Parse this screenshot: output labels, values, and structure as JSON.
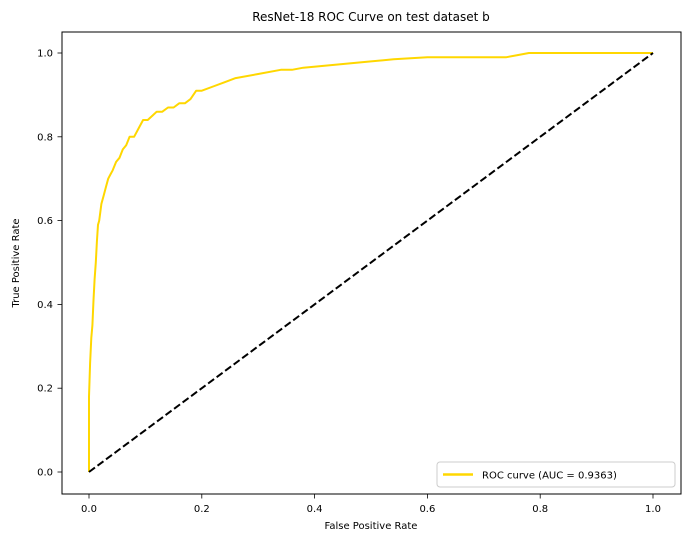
{
  "chart_data": {
    "type": "line",
    "title": "ResNet-18 ROC Curve on test dataset b",
    "xlabel": "False Positive Rate",
    "ylabel": "True Positive Rate",
    "xlim": [
      -0.05,
      1.05
    ],
    "ylim": [
      -0.05,
      1.05
    ],
    "grid": false,
    "legend_position": "lower right",
    "x_ticks": [
      0.0,
      0.2,
      0.4,
      0.6,
      0.8,
      1.0
    ],
    "x_tick_labels": [
      "0.0",
      "0.2",
      "0.4",
      "0.6",
      "0.8",
      "1.0"
    ],
    "y_ticks": [
      0.0,
      0.2,
      0.4,
      0.6,
      0.8,
      1.0
    ],
    "y_tick_labels": [
      "0.0",
      "0.2",
      "0.4",
      "0.6",
      "0.8",
      "1.0"
    ],
    "series": [
      {
        "name": "ROC curve (AUC = 0.9363)",
        "color": "#ffd700",
        "style": "solid",
        "linewidth": 2,
        "auc": 0.9363,
        "x": [
          0.0,
          0.0,
          0.002,
          0.004,
          0.006,
          0.008,
          0.01,
          0.012,
          0.014,
          0.016,
          0.018,
          0.02,
          0.022,
          0.026,
          0.03,
          0.034,
          0.038,
          0.042,
          0.048,
          0.054,
          0.06,
          0.066,
          0.072,
          0.08,
          0.088,
          0.096,
          0.104,
          0.112,
          0.12,
          0.13,
          0.14,
          0.15,
          0.16,
          0.17,
          0.18,
          0.19,
          0.2,
          0.22,
          0.24,
          0.26,
          0.3,
          0.34,
          0.36,
          0.38,
          0.42,
          0.46,
          0.5,
          0.54,
          0.6,
          0.7,
          0.74,
          0.76,
          0.78,
          0.9,
          1.0
        ],
        "y": [
          0.0,
          0.18,
          0.26,
          0.32,
          0.35,
          0.41,
          0.46,
          0.5,
          0.55,
          0.59,
          0.6,
          0.62,
          0.64,
          0.66,
          0.68,
          0.7,
          0.71,
          0.72,
          0.74,
          0.75,
          0.77,
          0.78,
          0.8,
          0.8,
          0.82,
          0.84,
          0.84,
          0.85,
          0.86,
          0.86,
          0.87,
          0.87,
          0.88,
          0.88,
          0.89,
          0.91,
          0.91,
          0.92,
          0.93,
          0.94,
          0.95,
          0.96,
          0.96,
          0.965,
          0.97,
          0.975,
          0.98,
          0.985,
          0.99,
          0.99,
          0.99,
          0.995,
          1.0,
          1.0,
          1.0
        ]
      },
      {
        "name": "chance",
        "color": "#000000",
        "style": "dashed",
        "linewidth": 2,
        "x": [
          0.0,
          1.0
        ],
        "y": [
          0.0,
          1.0
        ]
      }
    ]
  },
  "legend": {
    "entries": [
      {
        "label": "ROC curve (AUC = 0.9363)",
        "color": "#ffd700"
      }
    ]
  }
}
